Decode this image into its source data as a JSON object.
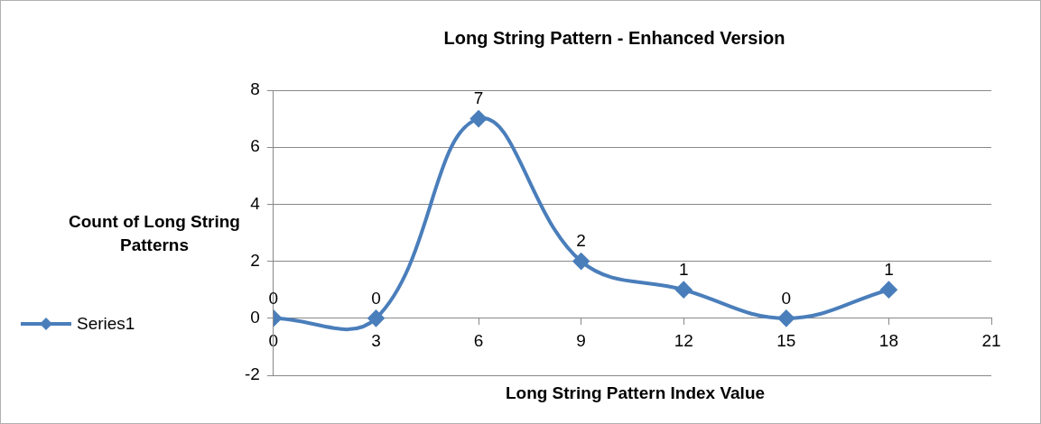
{
  "chart_data": {
    "type": "line",
    "title": "Long String Pattern - Enhanced Version",
    "xlabel": "Long String Pattern Index Value",
    "ylabel": "Count of Long String Patterns",
    "x": [
      0,
      3,
      6,
      9,
      12,
      15,
      18
    ],
    "series": [
      {
        "name": "Series1",
        "color": "#4a7ebb",
        "values": [
          0,
          0,
          7,
          2,
          1,
          0,
          1
        ]
      }
    ],
    "xlim": [
      0,
      21
    ],
    "xticks": [
      0,
      3,
      6,
      9,
      12,
      15,
      18,
      21
    ],
    "ylim": [
      -2,
      8
    ],
    "yticks": [
      -2,
      0,
      2,
      4,
      6,
      8
    ],
    "grid": "y",
    "legend": "left",
    "marker": "diamond",
    "data_labels": true
  }
}
